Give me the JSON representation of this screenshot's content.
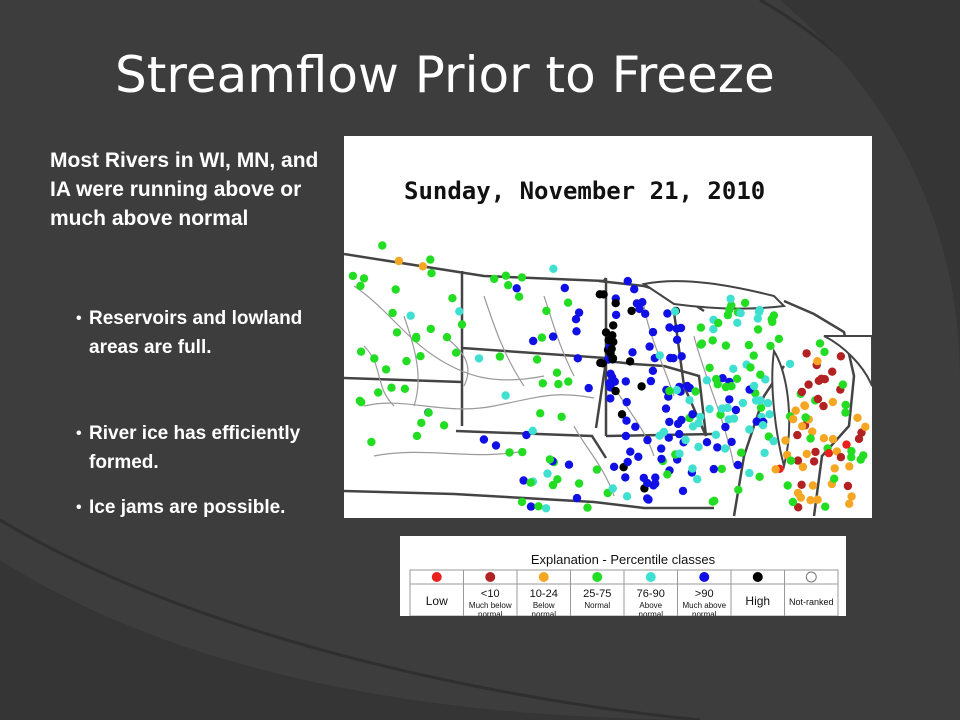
{
  "slide": {
    "title": "Streamflow Prior to Freeze",
    "heading": "Most Rivers in WI, MN, and IA were running above or much above normal",
    "bullets": [
      "Reservoirs and lowland areas are full.",
      "River ice has efficiently formed.",
      "Ice jams are possible."
    ],
    "bullet_symbol": "•"
  },
  "map": {
    "date_label": "Sunday, November 21, 2010"
  },
  "legend": {
    "title": "Explanation - Percentile classes",
    "classes": [
      {
        "range": "",
        "label": "Low",
        "sublabel": "",
        "color": "#e8211c"
      },
      {
        "range": "<10",
        "label": "",
        "sublabel": "Much below normal",
        "color": "#b22222"
      },
      {
        "range": "10-24",
        "label": "",
        "sublabel": "Below normal",
        "color": "#f5a623"
      },
      {
        "range": "25-75",
        "label": "",
        "sublabel": "Normal",
        "color": "#22dd22"
      },
      {
        "range": "76-90",
        "label": "",
        "sublabel": "Above normal",
        "color": "#40e0d0"
      },
      {
        "range": ">90",
        "label": "",
        "sublabel": "Much above normal",
        "color": "#1010e6"
      },
      {
        "range": "",
        "label": "High",
        "sublabel": "",
        "color": "#000000"
      },
      {
        "range": "",
        "label": "Not-ranked",
        "sublabel": "",
        "color": "#ffffff"
      }
    ]
  },
  "colors": {
    "background": "#3d3d3d",
    "text": "#ffffff",
    "low": "#e8211c",
    "much_below": "#b22222",
    "below": "#f5a623",
    "normal": "#22dd22",
    "above": "#40e0d0",
    "much_above": "#1010e6",
    "high": "#000000"
  }
}
